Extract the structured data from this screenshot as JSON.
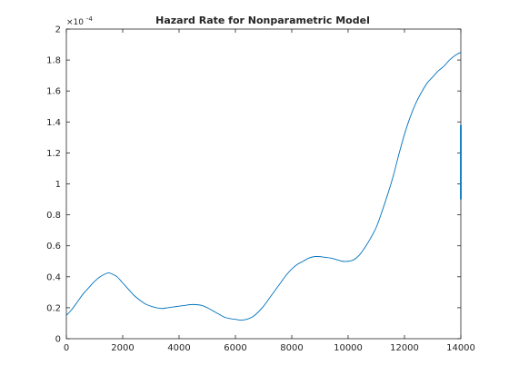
{
  "chart_data": {
    "type": "line",
    "title": "Hazard Rate for Nonparametric Model",
    "xlabel": "",
    "ylabel": "",
    "exponent_label": "×10",
    "exponent_power": "-4",
    "xlim": [
      0,
      14000
    ],
    "ylim": [
      0,
      2
    ],
    "x_ticks": [
      0,
      2000,
      4000,
      6000,
      8000,
      10000,
      12000,
      14000
    ],
    "x_tick_labels": [
      "0",
      "2000",
      "4000",
      "6000",
      "8000",
      "10000",
      "12000",
      "14000"
    ],
    "y_ticks": [
      0,
      0.2,
      0.4,
      0.6,
      0.8,
      1,
      1.2,
      1.4,
      1.6,
      1.8,
      2
    ],
    "y_tick_labels": [
      "0",
      "0.2",
      "0.4",
      "0.6",
      "0.8",
      "1",
      "1.2",
      "1.4",
      "1.6",
      "1.8",
      "2"
    ],
    "grid": false,
    "line_color": "#0072bd",
    "series": [
      {
        "x": [
          0,
          200,
          400,
          600,
          800,
          1000,
          1200,
          1400,
          1500,
          1600,
          1800,
          2000,
          2200,
          2400,
          2600,
          2800,
          3000,
          3200,
          3400,
          3600,
          3800,
          4000,
          4200,
          4400,
          4600,
          4800,
          5000,
          5200,
          5400,
          5600,
          5800,
          6000,
          6200,
          6400,
          6600,
          6800,
          7000,
          7200,
          7400,
          7600,
          7800,
          8000,
          8200,
          8400,
          8600,
          8800,
          9000,
          9200,
          9400,
          9600,
          9800,
          10000,
          10200,
          10400,
          10600,
          10800,
          11000,
          11200,
          11400,
          11600,
          11800,
          12000,
          12200,
          12400,
          12600,
          12800,
          13000,
          13200,
          13400,
          13600,
          13800,
          14000
        ],
        "values": [
          0.15,
          0.19,
          0.24,
          0.29,
          0.33,
          0.37,
          0.4,
          0.42,
          0.425,
          0.42,
          0.4,
          0.36,
          0.32,
          0.28,
          0.25,
          0.225,
          0.21,
          0.2,
          0.195,
          0.2,
          0.205,
          0.21,
          0.215,
          0.22,
          0.22,
          0.215,
          0.2,
          0.18,
          0.16,
          0.14,
          0.13,
          0.125,
          0.12,
          0.125,
          0.14,
          0.17,
          0.21,
          0.26,
          0.31,
          0.36,
          0.41,
          0.45,
          0.48,
          0.5,
          0.52,
          0.53,
          0.53,
          0.525,
          0.52,
          0.51,
          0.5,
          0.5,
          0.51,
          0.54,
          0.59,
          0.65,
          0.72,
          0.82,
          0.93,
          1.05,
          1.19,
          1.32,
          1.43,
          1.52,
          1.59,
          1.65,
          1.69,
          1.73,
          1.76,
          1.8,
          1.83,
          1.85
        ]
      },
      {
        "x": [
          14000,
          14000
        ],
        "values": [
          0.9,
          1.38
        ]
      }
    ]
  }
}
